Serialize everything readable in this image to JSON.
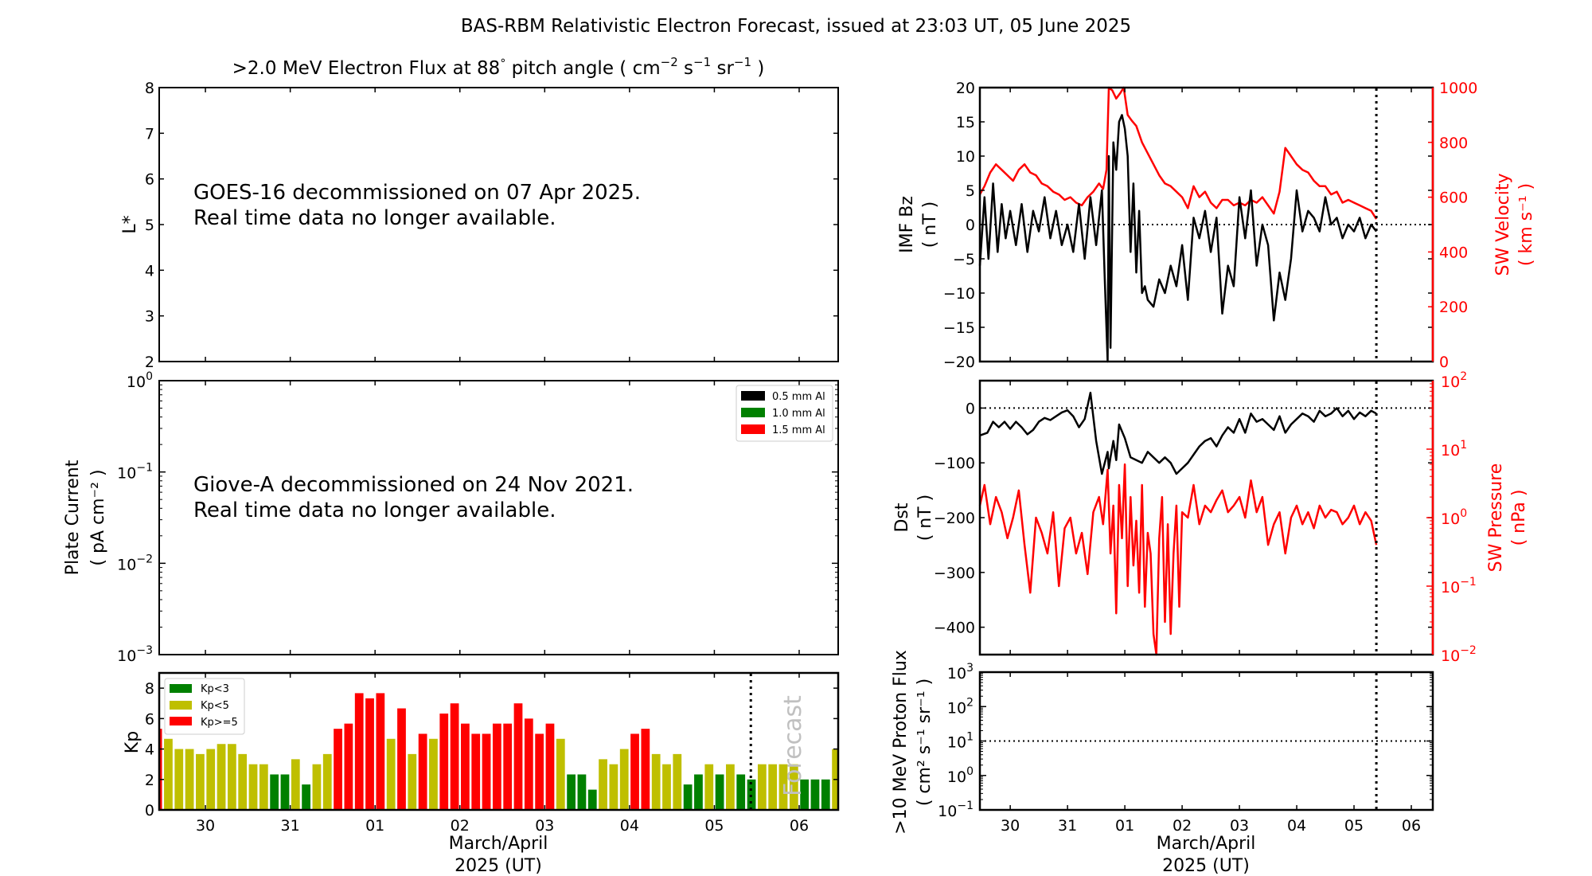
{
  "figure": {
    "title": "BAS-RBM Relativistic Electron Forecast, issued at 23:03 UT, 05 June 2025",
    "xlabel_line1": "March/April",
    "xlabel_line2": "2025 (UT)"
  },
  "colors": {
    "kp_low": "#008000",
    "kp_mid": "#bfbf00",
    "kp_high": "#ff0000",
    "red_series": "#ff0000",
    "black_series": "#000000",
    "forecast_text": "#c0c0c0"
  },
  "chart_data": [
    {
      "id": "electron-flux",
      "type": "heatmap",
      "title": ">2.0 MeV Electron Flux at 88° pitch angle ( cm⁻² s⁻¹ sr⁻¹ )",
      "title_parts": {
        "main": ">2.0 MeV Electron Flux at 88",
        "deg": "°",
        "pitch": " pitch angle ( cm",
        "e1": "−2",
        "s": " s",
        "e2": "−1",
        "sr": " sr",
        "e3": "−1",
        "close": " )"
      },
      "ylabel": "L*",
      "ylim": [
        2,
        8
      ],
      "yticks": [
        2,
        3,
        4,
        5,
        6,
        7,
        8
      ],
      "xlim": [
        29.455,
        37.46
      ],
      "xticks": [
        30,
        31,
        32,
        33,
        34,
        35,
        36,
        37
      ],
      "note_line1": "GOES-16 decommissioned on 07 Apr 2025.",
      "note_line2": "Real time data no longer available."
    },
    {
      "id": "plate-current",
      "type": "line",
      "ylabel_line1": "Plate Current",
      "ylabel_line2": "( pA cm⁻² )",
      "yscale": "log",
      "ylim": [
        0.001,
        1
      ],
      "yticks": [
        {
          "base": "10",
          "exp": "−3"
        },
        {
          "base": "10",
          "exp": "−2"
        },
        {
          "base": "10",
          "exp": "−1"
        },
        {
          "base": "10",
          "exp": "0"
        }
      ],
      "xlim": [
        29.455,
        37.46
      ],
      "legend": [
        "0.5 mm Al",
        "1.0 mm Al",
        "1.5 mm Al"
      ],
      "legend_colors": [
        "#000000",
        "#008000",
        "#ff0000"
      ],
      "legend_position": "top-right",
      "note_line1": "Giove-A decommissioned on 24 Nov 2021.",
      "note_line2": "Real time data no longer available."
    },
    {
      "id": "kp",
      "type": "bar",
      "ylabel": "Kp",
      "ylim": [
        0,
        9
      ],
      "yticks": [
        0,
        2,
        4,
        6,
        8
      ],
      "xlim": [
        29.455,
        37.46
      ],
      "bar_start": 29.375,
      "bar_width_days": 0.125,
      "values": [
        5.33,
        4.67,
        4.0,
        4.0,
        3.67,
        4.0,
        4.33,
        4.33,
        3.67,
        3.0,
        3.0,
        2.33,
        2.33,
        3.33,
        1.67,
        3.0,
        3.67,
        5.33,
        5.67,
        7.67,
        7.33,
        7.67,
        4.67,
        6.67,
        3.67,
        5.0,
        4.67,
        6.33,
        7.0,
        5.67,
        5.0,
        5.0,
        5.67,
        5.67,
        7.0,
        6.0,
        5.0,
        5.67,
        4.67,
        2.33,
        2.33,
        1.33,
        3.33,
        3.0,
        4.0,
        5.0,
        5.33,
        3.67,
        3.0,
        3.67,
        1.67,
        2.33,
        3.0,
        2.33,
        3.0,
        2.33,
        2.0,
        3.0,
        3.0,
        3.0,
        3.0,
        2.0,
        2.0,
        2.0,
        4.0
      ],
      "forecast_time": 36.43,
      "forecast_label": "Forecast",
      "legend": [
        "Kp<3",
        "Kp<5",
        "Kp>=5"
      ],
      "legend_position": "top-left",
      "xtick_labels": [
        "30",
        "31",
        "01",
        "02",
        "03",
        "04",
        "05",
        "06"
      ],
      "xticks": [
        30,
        31,
        32,
        33,
        34,
        35,
        36,
        37
      ]
    },
    {
      "id": "imf-sw-velocity",
      "type": "line",
      "ylabel_line1": "IMF Bz",
      "ylabel_line2": "( nT )",
      "ylim": [
        -20,
        20
      ],
      "yticks": [
        -20,
        -15,
        -10,
        -5,
        0,
        5,
        10,
        15,
        20
      ],
      "y2label_line1": "SW Velocity",
      "y2label_line2": "( km s⁻¹ )",
      "y2lim": [
        0,
        1000
      ],
      "y2ticks": [
        0,
        200,
        400,
        600,
        800,
        1000
      ],
      "xlim": [
        29.47,
        37.375
      ],
      "forecast_time": 36.39,
      "series": [
        {
          "name": "IMF Bz",
          "axis": "left",
          "color": "#000000",
          "x": [
            29.47,
            29.55,
            29.62,
            29.7,
            29.78,
            29.85,
            29.92,
            30.0,
            30.1,
            30.2,
            30.3,
            30.4,
            30.5,
            30.6,
            30.7,
            30.8,
            30.9,
            31.0,
            31.1,
            31.2,
            31.3,
            31.4,
            31.5,
            31.6,
            31.65,
            31.7,
            31.72,
            31.75,
            31.8,
            31.85,
            31.9,
            31.95,
            32.0,
            32.05,
            32.1,
            32.15,
            32.2,
            32.25,
            32.3,
            32.35,
            32.4,
            32.5,
            32.6,
            32.7,
            32.8,
            32.9,
            33.0,
            33.1,
            33.2,
            33.3,
            33.4,
            33.5,
            33.6,
            33.7,
            33.8,
            33.9,
            34.0,
            34.1,
            34.2,
            34.3,
            34.4,
            34.5,
            34.6,
            34.7,
            34.8,
            34.9,
            35.0,
            35.1,
            35.2,
            35.3,
            35.4,
            35.5,
            35.6,
            35.7,
            35.8,
            35.9,
            36.0,
            36.1,
            36.2,
            36.3,
            36.39
          ],
          "y": [
            -6,
            4,
            -5,
            6,
            -4,
            3,
            -2,
            2,
            -3,
            3,
            -4,
            2,
            -1,
            4,
            -2,
            2,
            -3,
            0,
            -4,
            3,
            -5,
            4,
            -3,
            5,
            -8,
            -20,
            10,
            -18,
            12,
            8,
            15,
            16,
            14,
            10,
            -4,
            6,
            -7,
            2,
            -10,
            -9,
            -11,
            -12,
            -8,
            -10,
            -6,
            -9,
            -3,
            -11,
            1,
            -2,
            2,
            -4,
            1,
            -13,
            -6,
            -9,
            4,
            -2,
            5,
            -6,
            0,
            -3,
            -14,
            -7,
            -11,
            -5,
            5,
            -1,
            2,
            1,
            -1,
            4,
            0,
            1,
            -2,
            0,
            -1,
            1,
            -2,
            0,
            -1
          ]
        },
        {
          "name": "SW Velocity",
          "axis": "right",
          "color": "#ff0000",
          "x": [
            29.47,
            29.55,
            29.65,
            29.75,
            29.85,
            29.95,
            30.05,
            30.15,
            30.25,
            30.35,
            30.45,
            30.55,
            30.65,
            30.75,
            30.85,
            30.95,
            31.05,
            31.15,
            31.25,
            31.35,
            31.45,
            31.55,
            31.62,
            31.68,
            31.72,
            31.78,
            31.85,
            31.92,
            31.98,
            32.05,
            32.12,
            32.2,
            32.3,
            32.4,
            32.5,
            32.6,
            32.7,
            32.8,
            32.9,
            33.0,
            33.1,
            33.2,
            33.3,
            33.4,
            33.5,
            33.6,
            33.7,
            33.8,
            33.9,
            34.0,
            34.1,
            34.2,
            34.3,
            34.4,
            34.5,
            34.6,
            34.7,
            34.8,
            34.9,
            35.0,
            35.1,
            35.2,
            35.3,
            35.4,
            35.5,
            35.6,
            35.7,
            35.8,
            35.9,
            36.0,
            36.1,
            36.2,
            36.3,
            36.39
          ],
          "y": [
            610,
            640,
            690,
            720,
            700,
            680,
            660,
            700,
            720,
            690,
            680,
            650,
            640,
            620,
            610,
            590,
            600,
            580,
            570,
            600,
            620,
            650,
            630,
            700,
            1000,
            990,
            960,
            980,
            1000,
            900,
            880,
            860,
            800,
            760,
            720,
            680,
            650,
            640,
            620,
            600,
            560,
            640,
            600,
            620,
            580,
            560,
            590,
            590,
            570,
            580,
            570,
            590,
            580,
            600,
            570,
            540,
            620,
            780,
            750,
            720,
            700,
            690,
            660,
            640,
            640,
            610,
            620,
            580,
            590,
            580,
            570,
            560,
            550,
            520
          ]
        }
      ]
    },
    {
      "id": "dst-sw-pressure",
      "type": "line",
      "ylabel_line1": "Dst",
      "ylabel_line2": "( nT )",
      "ylim": [
        -450,
        50
      ],
      "yticks": [
        -400,
        -300,
        -200,
        -100,
        0
      ],
      "y2label_line1": "SW Pressure",
      "y2label_line2": "( nPa )",
      "y2scale": "log",
      "y2lim": [
        0.01,
        100
      ],
      "y2ticks": [
        {
          "base": "10",
          "exp": "−2"
        },
        {
          "base": "10",
          "exp": "−1"
        },
        {
          "base": "10",
          "exp": "0"
        },
        {
          "base": "10",
          "exp": "1"
        },
        {
          "base": "10",
          "exp": "2"
        }
      ],
      "xlim": [
        29.47,
        37.375
      ],
      "forecast_time": 36.39,
      "series": [
        {
          "name": "Dst",
          "axis": "left",
          "color": "#000000",
          "x": [
            29.47,
            29.6,
            29.7,
            29.8,
            29.9,
            30.0,
            30.1,
            30.2,
            30.3,
            30.4,
            30.5,
            30.6,
            30.7,
            30.8,
            30.9,
            31.0,
            31.1,
            31.2,
            31.3,
            31.4,
            31.5,
            31.6,
            31.7,
            31.72,
            31.75,
            31.8,
            31.85,
            31.9,
            32.0,
            32.1,
            32.2,
            32.3,
            32.4,
            32.5,
            32.6,
            32.7,
            32.8,
            32.9,
            33.0,
            33.1,
            33.2,
            33.3,
            33.4,
            33.5,
            33.6,
            33.7,
            33.8,
            33.9,
            34.0,
            34.1,
            34.2,
            34.3,
            34.4,
            34.5,
            34.6,
            34.7,
            34.8,
            34.9,
            35.0,
            35.1,
            35.2,
            35.3,
            35.4,
            35.5,
            35.6,
            35.7,
            35.8,
            35.9,
            36.0,
            36.1,
            36.2,
            36.3,
            36.39
          ],
          "y": [
            -50,
            -45,
            -25,
            -35,
            -25,
            -38,
            -25,
            -35,
            -48,
            -40,
            -25,
            -18,
            -22,
            -15,
            -8,
            -4,
            -15,
            -35,
            -20,
            28,
            -60,
            -120,
            -80,
            -110,
            -90,
            -60,
            -95,
            -30,
            -55,
            -90,
            -95,
            -100,
            -80,
            -90,
            -100,
            -90,
            -100,
            -120,
            -110,
            -100,
            -85,
            -70,
            -60,
            -55,
            -70,
            -50,
            -35,
            -45,
            -20,
            -45,
            -10,
            -25,
            -20,
            -30,
            -40,
            -15,
            -45,
            -30,
            -20,
            -10,
            -15,
            -25,
            -5,
            -15,
            -10,
            0,
            -15,
            -5,
            -20,
            -8,
            -15,
            -5,
            -10
          ]
        },
        {
          "name": "SW Pressure",
          "axis": "right",
          "color": "#ff0000",
          "x": [
            29.47,
            29.55,
            29.65,
            29.75,
            29.85,
            29.95,
            30.05,
            30.15,
            30.25,
            30.35,
            30.45,
            30.55,
            30.65,
            30.75,
            30.85,
            30.95,
            31.05,
            31.15,
            31.25,
            31.35,
            31.45,
            31.55,
            31.62,
            31.7,
            31.75,
            31.8,
            31.85,
            31.9,
            31.95,
            32.0,
            32.05,
            32.1,
            32.15,
            32.2,
            32.25,
            32.3,
            32.35,
            32.4,
            32.45,
            32.5,
            32.55,
            32.6,
            32.65,
            32.7,
            32.75,
            32.8,
            32.85,
            32.9,
            32.95,
            33.0,
            33.1,
            33.2,
            33.3,
            33.4,
            33.5,
            33.6,
            33.7,
            33.8,
            33.9,
            34.0,
            34.1,
            34.2,
            34.3,
            34.4,
            34.5,
            34.6,
            34.7,
            34.8,
            34.9,
            35.0,
            35.1,
            35.2,
            35.3,
            35.4,
            35.5,
            35.6,
            35.7,
            35.8,
            35.9,
            36.0,
            36.1,
            36.2,
            36.3,
            36.39
          ],
          "y": [
            1.5,
            3.0,
            0.8,
            2.0,
            1.2,
            0.5,
            1.0,
            2.5,
            0.4,
            0.08,
            1.0,
            0.6,
            0.3,
            1.2,
            0.1,
            0.7,
            1.0,
            0.3,
            0.6,
            0.15,
            1.2,
            2.0,
            0.8,
            5.0,
            0.3,
            1.5,
            0.04,
            3.0,
            0.5,
            6.0,
            0.1,
            2.0,
            0.2,
            0.9,
            0.08,
            3.0,
            0.05,
            0.6,
            0.3,
            0.02,
            0.01,
            0.5,
            2.0,
            0.03,
            0.8,
            0.02,
            0.3,
            1.5,
            0.05,
            1.2,
            1.0,
            3.0,
            0.8,
            1.5,
            1.2,
            1.8,
            2.5,
            1.2,
            1.5,
            2.0,
            1.0,
            3.5,
            1.2,
            2.0,
            0.4,
            0.8,
            1.2,
            0.3,
            1.0,
            1.5,
            0.8,
            1.2,
            0.7,
            1.5,
            1.0,
            1.3,
            1.2,
            0.8,
            1.0,
            1.5,
            0.8,
            1.2,
            0.9,
            0.4
          ]
        }
      ]
    },
    {
      "id": "proton-flux",
      "type": "line",
      "ylabel_line1": ">10 MeV Proton Flux",
      "ylabel_line2": "( cm² s⁻¹ sr⁻¹ )",
      "yscale": "log",
      "ylim": [
        0.1,
        1000
      ],
      "yticks": [
        {
          "base": "10",
          "exp": "−1"
        },
        {
          "base": "10",
          "exp": "0"
        },
        {
          "base": "10",
          "exp": "1"
        },
        {
          "base": "10",
          "exp": "2"
        },
        {
          "base": "10",
          "exp": "3"
        }
      ],
      "threshold": 10,
      "xlim": [
        29.47,
        37.375
      ],
      "xticks": [
        30,
        31,
        32,
        33,
        34,
        35,
        36,
        37
      ],
      "xtick_labels": [
        "30",
        "31",
        "01",
        "02",
        "03",
        "04",
        "05",
        "06"
      ],
      "forecast_time": 36.39,
      "series": []
    }
  ]
}
